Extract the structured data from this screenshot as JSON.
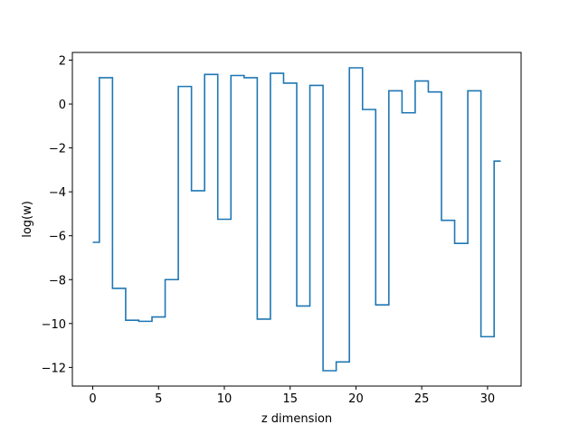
{
  "chart_data": {
    "type": "line",
    "drawstyle": "steps-mid",
    "title": "",
    "xlabel": "z dimension",
    "ylabel": "log(w)",
    "xlim": [
      -1.55,
      32.55
    ],
    "ylim": [
      -12.85,
      2.35
    ],
    "xticks": [
      0,
      5,
      10,
      15,
      20,
      25,
      30
    ],
    "xtick_labels": [
      "0",
      "5",
      "10",
      "15",
      "20",
      "25",
      "30"
    ],
    "yticks": [
      2,
      0,
      -2,
      -4,
      -6,
      -8,
      -10,
      -12
    ],
    "ytick_labels": [
      "2",
      "0",
      "−2",
      "−4",
      "−6",
      "−8",
      "−10",
      "−12"
    ],
    "grid": false,
    "legend": "none",
    "series": [
      {
        "color": "#1f77b4",
        "x": [
          0,
          1,
          2,
          3,
          4,
          5,
          6,
          7,
          8,
          9,
          10,
          11,
          12,
          13,
          14,
          15,
          16,
          17,
          18,
          19,
          20,
          21,
          22,
          23,
          24,
          25,
          26,
          27,
          28,
          29,
          30,
          31
        ],
        "y": [
          -6.3,
          1.2,
          -8.4,
          -9.85,
          -9.9,
          -9.7,
          -8.0,
          0.8,
          -3.95,
          1.35,
          -5.25,
          1.3,
          1.2,
          -9.8,
          1.4,
          0.95,
          -9.2,
          0.85,
          -12.15,
          -11.75,
          1.65,
          -0.25,
          -9.15,
          0.6,
          -0.4,
          1.05,
          0.55,
          -5.3,
          -6.35,
          0.6,
          -10.6,
          -2.6
        ]
      }
    ]
  }
}
